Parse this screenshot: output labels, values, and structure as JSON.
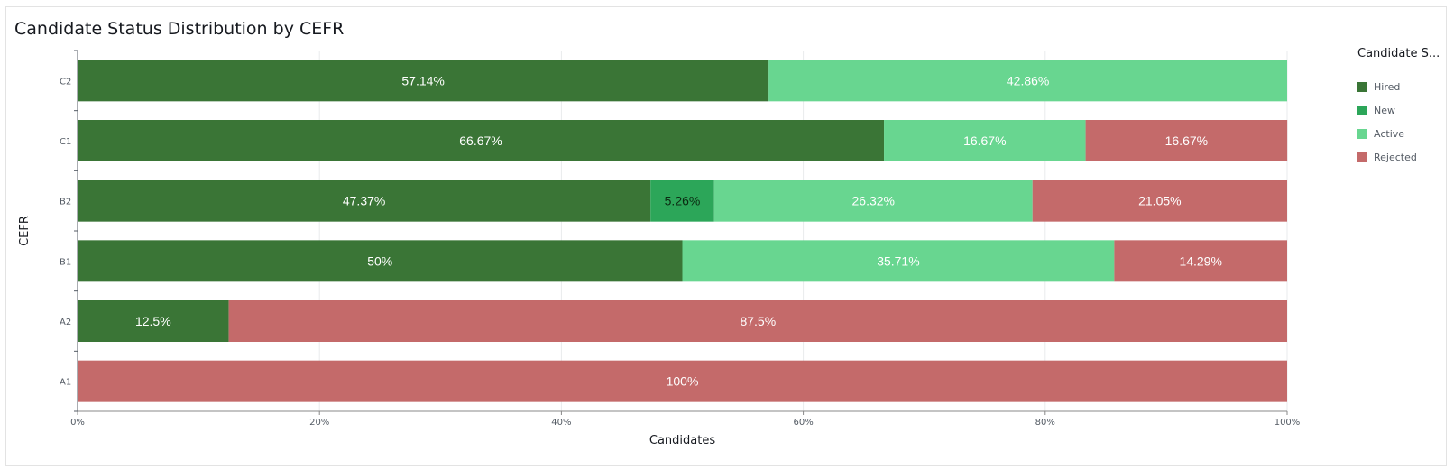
{
  "chart_data": {
    "type": "bar",
    "orientation": "horizontal",
    "stacked": "percent",
    "title": "Candidate Status Distribution by CEFR",
    "xlabel": "Candidates",
    "ylabel": "CEFR",
    "xlim": [
      0,
      100
    ],
    "x_ticks": [
      "0%",
      "20%",
      "40%",
      "60%",
      "80%",
      "100%"
    ],
    "categories": [
      "C2",
      "C1",
      "B2",
      "B1",
      "A2",
      "A1"
    ],
    "legend_title": "Candidate S...",
    "legend_position": "right",
    "grid": true,
    "series": [
      {
        "name": "Hired",
        "color": "#3a7536",
        "values": [
          57.14,
          66.67,
          47.37,
          50,
          12.5,
          0
        ],
        "labels": [
          "57.14%",
          "66.67%",
          "47.37%",
          "50%",
          "12.5%",
          ""
        ]
      },
      {
        "name": "New",
        "color": "#2ca659",
        "values": [
          0,
          0,
          5.26,
          0,
          0,
          0
        ],
        "labels": [
          "",
          "",
          "5.26%",
          "",
          "",
          ""
        ]
      },
      {
        "name": "Active",
        "color": "#68d690",
        "values": [
          42.86,
          16.67,
          26.32,
          35.71,
          0,
          0
        ],
        "labels": [
          "42.86%",
          "16.67%",
          "26.32%",
          "35.71%",
          "",
          ""
        ]
      },
      {
        "name": "Rejected",
        "color": "#c46a6a",
        "values": [
          0,
          16.67,
          21.05,
          14.29,
          87.5,
          100
        ],
        "labels": [
          "",
          "16.67%",
          "21.05%",
          "14.29%",
          "87.5%",
          "100%"
        ]
      }
    ]
  }
}
